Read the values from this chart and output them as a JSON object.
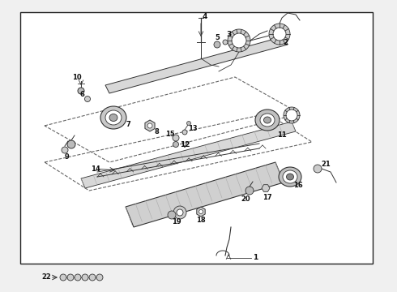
{
  "bg_color": "#f0f0f0",
  "box_bg": "#ffffff",
  "border_color": "#222222",
  "line_color": "#333333",
  "dash_color": "#666666",
  "fig_width": 4.9,
  "fig_height": 3.6,
  "dpi": 100,
  "border": [
    25,
    15,
    435,
    310
  ]
}
